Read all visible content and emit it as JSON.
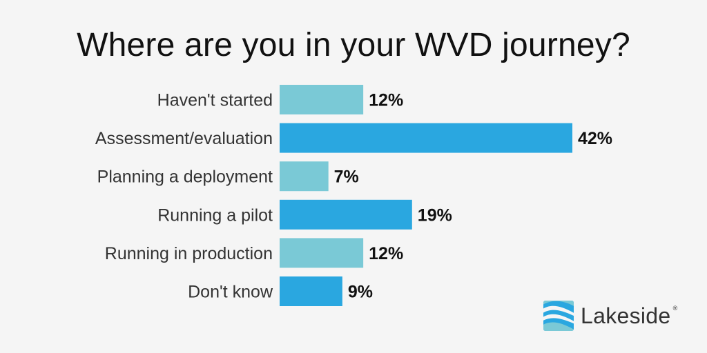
{
  "chart_data": {
    "type": "bar",
    "orientation": "horizontal",
    "title": "Where are you in your WVD journey?",
    "categories": [
      "Haven't started",
      "Assessment/evaluation",
      "Planning a deployment",
      "Running a pilot",
      "Running in production",
      "Don't know"
    ],
    "values": [
      12,
      42,
      7,
      19,
      12,
      9
    ],
    "value_labels": [
      "12%",
      "42%",
      "7%",
      "19%",
      "12%",
      "9%"
    ],
    "xlim": [
      0,
      42
    ],
    "grid": false,
    "colors": [
      "#7ac9d6",
      "#2aa7e0",
      "#7ac9d6",
      "#2aa7e0",
      "#7ac9d6",
      "#2aa7e0"
    ]
  },
  "brand": {
    "name": "Lakeside",
    "registered_mark": "®",
    "logo_icon": "lakeside-waves-icon",
    "logo_colors": [
      "#2aa7e0",
      "#7ac9d6"
    ]
  },
  "colors": {
    "background": "#f5f5f5"
  }
}
